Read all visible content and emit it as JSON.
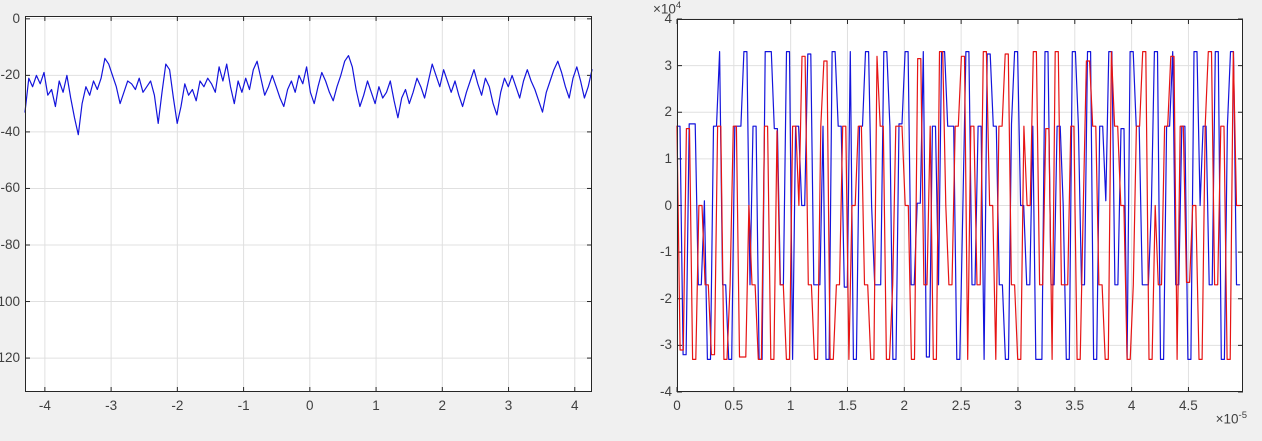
{
  "figure": {
    "bg": "#f0f0f0",
    "plot_bg": "#ffffff",
    "axes_color": "#262626",
    "grid_color": "#e0e0e0",
    "tick_label_color": "#3f3f3f"
  },
  "chart_data": [
    {
      "id": "left-plot",
      "type": "line",
      "title": "",
      "xlabel": "",
      "ylabel": "",
      "grid": true,
      "xlim": [
        -4.3,
        4.26
      ],
      "ylim": [
        -132,
        1
      ],
      "xticks": [
        -4,
        -3,
        -2,
        -1,
        0,
        1,
        2,
        3,
        4
      ],
      "xtick_labels": [
        "-4",
        "-3",
        "-2",
        "-1",
        "0",
        "1",
        "2",
        "3",
        "4"
      ],
      "yticks": [
        0,
        -20,
        -40,
        -60,
        -80,
        -100,
        -120
      ],
      "ytick_labels": [
        "0",
        "-20",
        "-40",
        "-60",
        "-80",
        "-100",
        "-120"
      ],
      "series": [
        {
          "name": "blue-signal",
          "color": "#1414dc",
          "encoding": "values",
          "x_start": -4.3,
          "x_end": 4.26,
          "values": [
            -33,
            -21,
            -24,
            -20,
            -23,
            -19,
            -27,
            -25,
            -31,
            -22,
            -26,
            -20,
            -28,
            -35,
            -41,
            -30,
            -24,
            -27,
            -22,
            -25,
            -21,
            -14,
            -16,
            -20,
            -24,
            -30,
            -26,
            -22,
            -23,
            -25,
            -21,
            -26,
            -24,
            -22,
            -27,
            -37,
            -26,
            -16,
            -18,
            -28,
            -37,
            -31,
            -23,
            -27,
            -25,
            -29,
            -22,
            -24,
            -21,
            -23,
            -26,
            -17,
            -22,
            -16,
            -24,
            -30,
            -22,
            -26,
            -21,
            -25,
            -18,
            -15,
            -21,
            -27,
            -24,
            -20,
            -24,
            -28,
            -31,
            -25,
            -22,
            -26,
            -20,
            -23,
            -17,
            -26,
            -30,
            -24,
            -19,
            -22,
            -26,
            -29,
            -24,
            -20,
            -15,
            -13,
            -17,
            -25,
            -31,
            -27,
            -22,
            -26,
            -30,
            -24,
            -28,
            -26,
            -22,
            -29,
            -35,
            -28,
            -25,
            -30,
            -26,
            -21,
            -24,
            -28,
            -22,
            -16,
            -20,
            -24,
            -18,
            -22,
            -26,
            -22,
            -27,
            -31,
            -26,
            -22,
            -18,
            -23,
            -27,
            -21,
            -24,
            -30,
            -34,
            -26,
            -21,
            -24,
            -20,
            -24,
            -28,
            -22,
            -18,
            -22,
            -25,
            -29,
            -33,
            -26,
            -22,
            -18,
            -15,
            -19,
            -24,
            -28,
            -21,
            -17,
            -22,
            -28,
            -24,
            -18
          ]
        }
      ]
    },
    {
      "id": "right-plot",
      "type": "line",
      "title": "",
      "xlabel": "",
      "ylabel": "",
      "grid": true,
      "xlim": [
        0,
        4.98
      ],
      "ylim": [
        -4,
        4
      ],
      "x_multiplier": {
        "base": "×10",
        "exp": "-5"
      },
      "y_multiplier": {
        "base": "×10",
        "exp": "4"
      },
      "xticks": [
        0,
        0.5,
        1,
        1.5,
        2,
        2.5,
        3,
        3.5,
        4,
        4.5
      ],
      "xtick_labels": [
        "0",
        "0.5",
        "1",
        "1.5",
        "2",
        "2.5",
        "3",
        "3.5",
        "4",
        "4.5"
      ],
      "yticks": [
        4,
        3,
        2,
        1,
        0,
        -1,
        -2,
        -3,
        -4
      ],
      "ytick_labels": [
        "4",
        "3",
        "2",
        "1",
        "0",
        "-1",
        "-2",
        "-3",
        "-4"
      ],
      "series": [
        {
          "name": "blue-signal",
          "color": "#1414dc",
          "encoding": "rle",
          "x_start": 0,
          "x_end": 4.95,
          "rle": [
            [
              1.7,
              2
            ],
            [
              -3.2,
              2
            ],
            [
              1.75,
              3
            ],
            [
              -1.7,
              2
            ],
            [
              0.1,
              1
            ],
            [
              -3.3,
              2
            ],
            [
              1.7,
              2
            ],
            [
              3.3,
              1
            ],
            [
              -1.7,
              2
            ],
            [
              -3.3,
              2
            ],
            [
              1.7,
              3
            ],
            [
              3.3,
              2
            ],
            [
              -1.7,
              1
            ],
            [
              1.7,
              2
            ],
            [
              -3.3,
              2
            ],
            [
              3.3,
              3
            ],
            [
              1.65,
              2
            ],
            [
              -1.7,
              2
            ],
            [
              3.3,
              2
            ],
            [
              -3.3,
              1
            ],
            [
              1.7,
              2
            ],
            [
              0,
              2
            ],
            [
              3.25,
              2
            ],
            [
              -1.7,
              3
            ],
            [
              1.7,
              1
            ],
            [
              -3.3,
              2
            ],
            [
              3.3,
              2
            ],
            [
              1.7,
              2
            ],
            [
              -1.75,
              2
            ],
            [
              3.3,
              1
            ],
            [
              -3.3,
              2
            ],
            [
              1.7,
              2
            ],
            [
              3.3,
              2
            ],
            [
              0,
              1
            ],
            [
              -1.7,
              3
            ],
            [
              3.3,
              2
            ],
            [
              1.7,
              1
            ],
            [
              -3.3,
              2
            ],
            [
              1.75,
              2
            ],
            [
              3.3,
              2
            ],
            [
              -1.7,
              2
            ],
            [
              0.05,
              2
            ],
            [
              3.3,
              1
            ],
            [
              -3.25,
              2
            ],
            [
              1.7,
              2
            ],
            [
              -1.7,
              1
            ],
            [
              3.3,
              2
            ],
            [
              1.7,
              3
            ],
            [
              -3.3,
              2
            ],
            [
              0,
              1
            ],
            [
              3.3,
              2
            ],
            [
              -1.7,
              2
            ],
            [
              1.7,
              2
            ],
            [
              -3.3,
              1
            ],
            [
              3.25,
              2
            ],
            [
              1.7,
              2
            ],
            [
              -1.7,
              2
            ],
            [
              -3.3,
              2
            ],
            [
              1.75,
              1
            ],
            [
              3.3,
              2
            ],
            [
              0,
              2
            ],
            [
              -1.7,
              2
            ],
            [
              1.7,
              1
            ],
            [
              -3.3,
              3
            ],
            [
              3.3,
              2
            ],
            [
              -1.7,
              2
            ],
            [
              1.7,
              2
            ],
            [
              0,
              1
            ],
            [
              -3.3,
              2
            ],
            [
              3.3,
              2
            ],
            [
              1.7,
              1
            ],
            [
              -1.7,
              2
            ],
            [
              3.3,
              2
            ],
            [
              -3.3,
              2
            ],
            [
              1.7,
              2
            ],
            [
              0.1,
              1
            ],
            [
              3.3,
              2
            ],
            [
              -1.7,
              2
            ],
            [
              1.65,
              2
            ],
            [
              -3.3,
              1
            ],
            [
              3.3,
              2
            ],
            [
              1.7,
              2
            ],
            [
              -1.7,
              3
            ],
            [
              0,
              1
            ],
            [
              3.3,
              2
            ],
            [
              -3.3,
              2
            ],
            [
              1.7,
              2
            ],
            [
              3.3,
              1
            ],
            [
              -1.7,
              2
            ],
            [
              1.7,
              2
            ],
            [
              -3.3,
              2
            ],
            [
              3.3,
              2
            ],
            [
              0,
              1
            ],
            [
              1.7,
              2
            ],
            [
              -1.7,
              2
            ],
            [
              3.3,
              2
            ],
            [
              -3.3,
              2
            ],
            [
              1.7,
              1
            ],
            [
              3.3,
              2
            ],
            [
              -1.7,
              2
            ]
          ]
        },
        {
          "name": "red-signal",
          "color": "#e61414",
          "encoding": "rle",
          "x_start": 0,
          "x_end": 4.95,
          "rle": [
            [
              1.7,
              1
            ],
            [
              -3.1,
              2
            ],
            [
              1.65,
              2
            ],
            [
              -3.3,
              2
            ],
            [
              0,
              2
            ],
            [
              -1.7,
              2
            ],
            [
              -3.2,
              2
            ],
            [
              1.7,
              2
            ],
            [
              -3.3,
              2
            ],
            [
              -1.7,
              1
            ],
            [
              1.7,
              2
            ],
            [
              -3.25,
              3
            ],
            [
              0,
              1
            ],
            [
              -1.7,
              2
            ],
            [
              -3.3,
              2
            ],
            [
              1.7,
              2
            ],
            [
              -3.3,
              2
            ],
            [
              1.6,
              1
            ],
            [
              -1.7,
              2
            ],
            [
              -3.3,
              2
            ],
            [
              1.7,
              2
            ],
            [
              0,
              1
            ],
            [
              3.2,
              2
            ],
            [
              -1.7,
              2
            ],
            [
              -3.3,
              2
            ],
            [
              1.7,
              1
            ],
            [
              3.1,
              2
            ],
            [
              -3.3,
              2
            ],
            [
              -1.7,
              2
            ],
            [
              1.7,
              2
            ],
            [
              -3.3,
              1
            ],
            [
              0,
              2
            ],
            [
              1.7,
              2
            ],
            [
              -1.7,
              2
            ],
            [
              -3.3,
              2
            ],
            [
              3.2,
              1
            ],
            [
              1.7,
              2
            ],
            [
              -3.3,
              2
            ],
            [
              -1.7,
              1
            ],
            [
              1.7,
              3
            ],
            [
              0,
              2
            ],
            [
              -3.3,
              2
            ],
            [
              3.15,
              2
            ],
            [
              -1.7,
              2
            ],
            [
              1.7,
              1
            ],
            [
              -3.3,
              2
            ],
            [
              3.3,
              2
            ],
            [
              0,
              1
            ],
            [
              -1.7,
              2
            ],
            [
              1.7,
              2
            ],
            [
              3.2,
              2
            ],
            [
              -3.3,
              1
            ],
            [
              1.7,
              2
            ],
            [
              -1.7,
              2
            ],
            [
              3.3,
              2
            ],
            [
              0,
              2
            ],
            [
              -3.3,
              1
            ],
            [
              1.7,
              2
            ],
            [
              3.25,
              2
            ],
            [
              -1.7,
              2
            ],
            [
              -3.3,
              2
            ],
            [
              1.7,
              1
            ],
            [
              0,
              2
            ],
            [
              3.3,
              2
            ],
            [
              -1.7,
              2
            ],
            [
              1.65,
              2
            ],
            [
              -3.3,
              1
            ],
            [
              3.3,
              2
            ],
            [
              -1.7,
              3
            ],
            [
              1.7,
              2
            ],
            [
              -3.3,
              2
            ],
            [
              0,
              1
            ],
            [
              3.1,
              2
            ],
            [
              1.7,
              2
            ],
            [
              -1.7,
              2
            ],
            [
              -3.3,
              2
            ],
            [
              3.3,
              1
            ],
            [
              1.7,
              2
            ],
            [
              0,
              2
            ],
            [
              -3.3,
              2
            ],
            [
              -1.7,
              1
            ],
            [
              1.7,
              2
            ],
            [
              3.3,
              2
            ],
            [
              -3.3,
              2
            ],
            [
              0,
              1
            ],
            [
              -1.7,
              2
            ],
            [
              1.7,
              2
            ],
            [
              3.2,
              2
            ],
            [
              -3.3,
              1
            ],
            [
              1.7,
              2
            ],
            [
              -1.65,
              2
            ],
            [
              0,
              2
            ],
            [
              -3.3,
              2
            ],
            [
              1.7,
              1
            ],
            [
              3.3,
              2
            ],
            [
              -1.7,
              2
            ],
            [
              1.7,
              2
            ],
            [
              -3.3,
              2
            ],
            [
              3.3,
              1
            ],
            [
              0,
              2
            ]
          ]
        }
      ]
    }
  ]
}
